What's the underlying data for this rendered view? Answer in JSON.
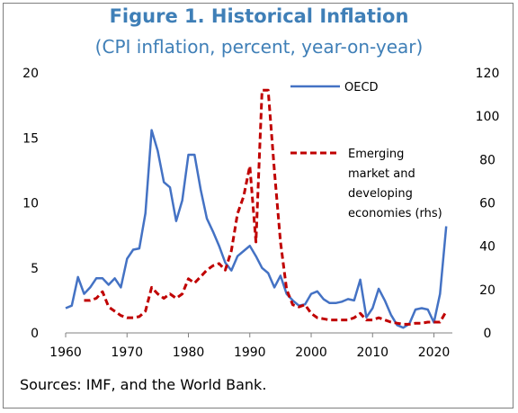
{
  "chart_data": {
    "type": "line",
    "title": "Figure 1. Historical Inflation",
    "subtitle": "(CPI inflation, percent, year-on-year)",
    "source": "Sources: IMF, and the World Bank.",
    "xlim": [
      1960,
      2023
    ],
    "ylim_left": [
      0,
      20
    ],
    "ylim_right": [
      0,
      120
    ],
    "x_ticks": [
      "1960",
      "1970",
      "1980",
      "1990",
      "2000",
      "2010",
      "2020"
    ],
    "y_left_ticks": [
      "0",
      "5",
      "10",
      "15",
      "20"
    ],
    "y_right_ticks": [
      "0",
      "20",
      "40",
      "60",
      "80",
      "100",
      "120"
    ],
    "grid": false,
    "colors": {
      "oecd": "#4472c4",
      "emde": "#c00000"
    },
    "series": [
      {
        "name": "OECD",
        "axis": "left",
        "style": "solid",
        "x": [
          1960,
          1961,
          1962,
          1963,
          1964,
          1965,
          1966,
          1967,
          1968,
          1969,
          1970,
          1971,
          1972,
          1973,
          1974,
          1975,
          1976,
          1977,
          1978,
          1979,
          1980,
          1981,
          1982,
          1983,
          1984,
          1985,
          1986,
          1987,
          1988,
          1989,
          1990,
          1991,
          1992,
          1993,
          1994,
          1995,
          1996,
          1997,
          1998,
          1999,
          2000,
          2001,
          2002,
          2003,
          2004,
          2005,
          2006,
          2007,
          2008,
          2009,
          2010,
          2011,
          2012,
          2013,
          2014,
          2015,
          2016,
          2017,
          2018,
          2019,
          2020,
          2021,
          2022
        ],
        "values": [
          1.9,
          2.1,
          4.3,
          3.0,
          3.5,
          4.2,
          4.2,
          3.7,
          4.2,
          3.5,
          5.7,
          6.4,
          6.5,
          9.2,
          15.6,
          14.0,
          11.6,
          11.2,
          8.6,
          10.2,
          13.7,
          13.7,
          11.0,
          8.8,
          7.8,
          6.7,
          5.4,
          4.8,
          5.9,
          6.3,
          6.7,
          5.9,
          5.0,
          4.6,
          3.5,
          4.4,
          3.0,
          2.5,
          2.1,
          2.2,
          3.0,
          3.2,
          2.6,
          2.3,
          2.3,
          2.4,
          2.6,
          2.5,
          4.1,
          1.2,
          1.9,
          3.4,
          2.5,
          1.4,
          0.6,
          0.4,
          0.7,
          1.8,
          1.9,
          1.8,
          0.8,
          3.0,
          8.2
        ]
      },
      {
        "name": "Emerging market and developing economies (rhs)",
        "axis": "right",
        "style": "dashed",
        "x": [
          1963,
          1964,
          1965,
          1966,
          1967,
          1968,
          1969,
          1970,
          1971,
          1972,
          1973,
          1974,
          1975,
          1976,
          1977,
          1978,
          1979,
          1980,
          1981,
          1982,
          1983,
          1984,
          1985,
          1986,
          1987,
          1988,
          1989,
          1990,
          1991,
          1992,
          1993,
          1994,
          1995,
          1996,
          1997,
          1998,
          1999,
          2000,
          2001,
          2002,
          2003,
          2004,
          2005,
          2006,
          2007,
          2008,
          2009,
          2010,
          2011,
          2012,
          2013,
          2014,
          2015,
          2016,
          2017,
          2018,
          2019,
          2020,
          2021,
          2022
        ],
        "values": [
          15,
          15,
          16,
          19,
          12,
          10,
          8,
          7,
          7,
          7.5,
          10,
          21,
          18,
          16,
          18,
          16,
          18,
          25,
          23,
          26,
          29,
          31,
          32,
          29,
          38,
          55,
          63,
          77,
          42,
          112,
          112,
          75,
          42,
          20,
          13,
          12,
          13,
          9,
          7,
          6.5,
          6,
          6,
          6,
          6,
          7,
          9,
          6,
          6,
          7,
          6,
          5,
          4.5,
          4,
          4,
          4.5,
          4.5,
          5,
          5,
          5,
          10
        ]
      }
    ],
    "legend": {
      "oecd": "OECD",
      "emde": [
        "Emerging",
        "market and",
        "developing",
        "economies (rhs)"
      ]
    }
  }
}
